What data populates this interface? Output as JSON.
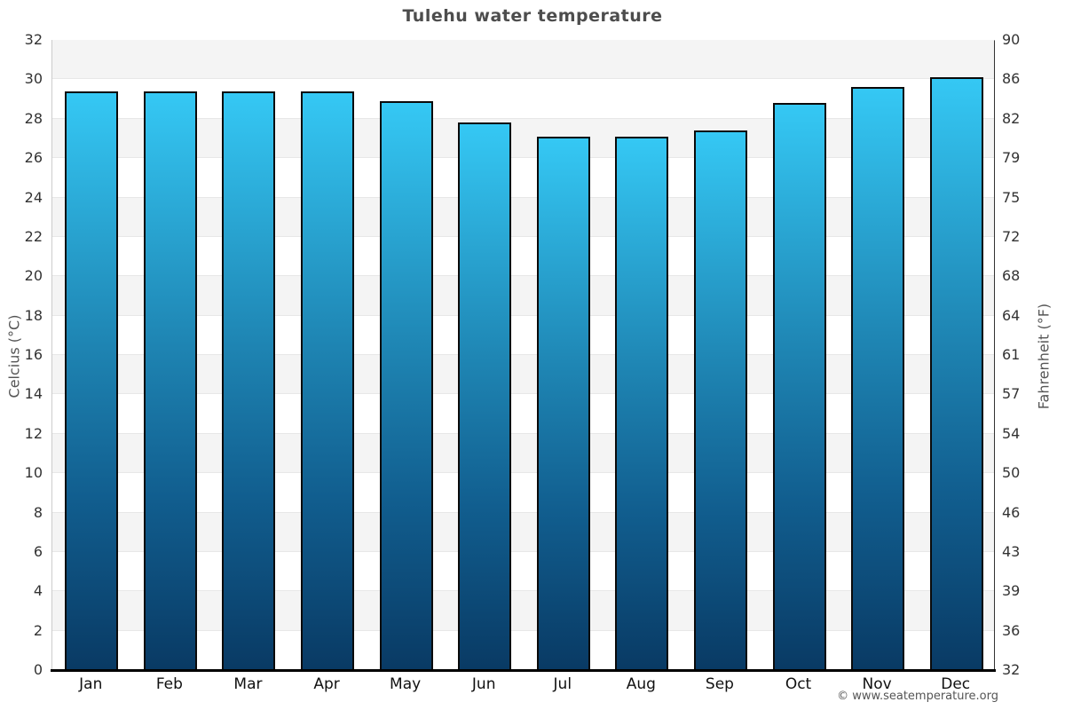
{
  "page": {
    "title": "Tulehu water temperature",
    "credit": "© www.seatemperature.org"
  },
  "chart_data": {
    "type": "bar",
    "title": "Tulehu water temperature",
    "categories": [
      "Jan",
      "Feb",
      "Mar",
      "Apr",
      "May",
      "Jun",
      "Jul",
      "Aug",
      "Sep",
      "Oct",
      "Nov",
      "Dec"
    ],
    "series": [
      {
        "name": "Water temperature",
        "unit": "°C",
        "values": [
          29.4,
          29.4,
          29.4,
          29.4,
          28.9,
          27.8,
          27.1,
          27.1,
          27.4,
          28.8,
          29.6,
          30.1
        ]
      }
    ],
    "ylabel_left": "Celcius (°C)",
    "ylabel_right": "Fahrenheit (°F)",
    "ylim_c": [
      0,
      32
    ],
    "ylim_f": [
      32,
      90
    ],
    "ytick_step_c": 2,
    "yticks_c": [
      0,
      2,
      4,
      6,
      8,
      10,
      12,
      14,
      16,
      18,
      20,
      22,
      24,
      26,
      28,
      30,
      32
    ],
    "yticks_f": [
      32,
      36,
      39,
      43,
      46,
      50,
      54,
      57,
      61,
      64,
      68,
      72,
      75,
      79,
      82,
      86,
      90
    ],
    "grid": "horizontal gridlines every 2°C with alternating gray bands",
    "legend": "none"
  },
  "colors": {
    "bar_gradient_top": "#35c8f4",
    "bar_gradient_mid": "#1f87b5",
    "bar_gradient_bottom": "#093a64",
    "bar_border": "#0a0a0a",
    "band_fill": "#f4f4f4",
    "gridline": "#e7e7e7",
    "plot_border": "#cccccc",
    "right_axis_line": "#333333",
    "bottom_axis_line": "#000000",
    "title_text": "#4d4d4d",
    "tick_text": "#333333",
    "month_text": "#111111",
    "axis_title_text": "#555555",
    "credit_text": "#555555"
  }
}
